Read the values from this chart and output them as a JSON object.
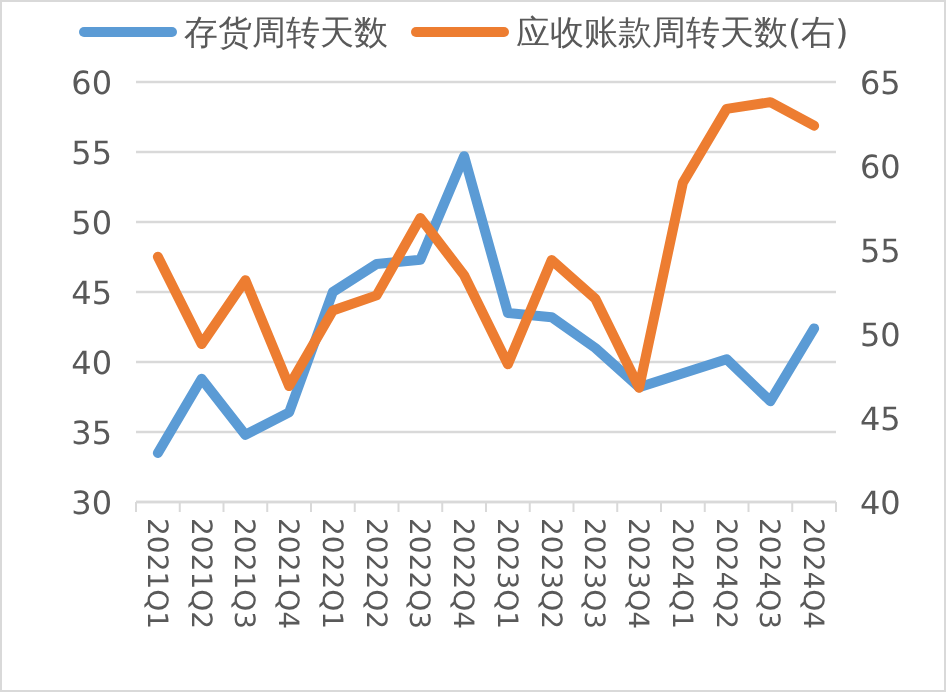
{
  "chart_data": {
    "type": "line",
    "categories": [
      "2021Q1",
      "2021Q2",
      "2021Q3",
      "2021Q4",
      "2022Q1",
      "2022Q2",
      "2022Q3",
      "2022Q4",
      "2023Q1",
      "2023Q2",
      "2023Q3",
      "2023Q4",
      "2024Q1",
      "2024Q2",
      "2024Q3",
      "2024Q4"
    ],
    "series": [
      {
        "name": "存货周转天数",
        "color": "#5b9bd5",
        "values": [
          33.5,
          38.8,
          34.8,
          36.4,
          45.0,
          47.0,
          47.3,
          54.7,
          43.5,
          43.2,
          41.0,
          38.2,
          39.2,
          40.2,
          37.2,
          42.4
        ]
      },
      {
        "name": "应收账款周转天数(右)",
        "color": "#ed7d31",
        "axis": "y2",
        "values": [
          54.6,
          49.4,
          53.2,
          46.9,
          51.4,
          52.3,
          56.9,
          53.5,
          48.2,
          54.4,
          52.1,
          46.8,
          59.0,
          63.4,
          63.8,
          62.4
        ]
      }
    ],
    "ylim": [
      30,
      60
    ],
    "yticks": [
      30,
      35,
      40,
      45,
      50,
      55,
      60
    ],
    "y2lim": [
      40,
      65
    ],
    "y2ticks": [
      40,
      45,
      50,
      55,
      60,
      65
    ],
    "grid": "y",
    "legend": "top",
    "marker": "none",
    "line_style": "solid"
  }
}
